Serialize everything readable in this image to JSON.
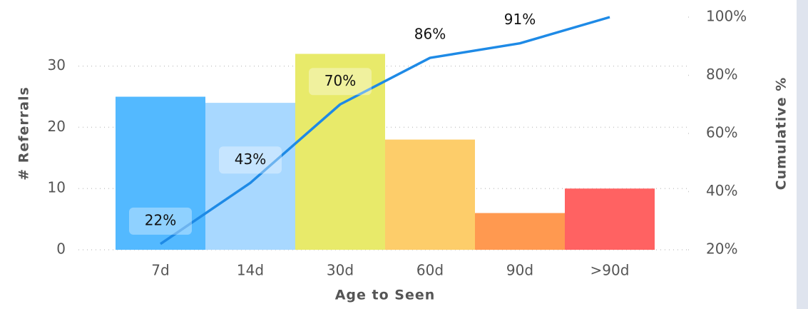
{
  "chart_data": {
    "type": "bar",
    "categories": [
      "7d",
      "14d",
      "30d",
      "60d",
      "90d",
      ">90d"
    ],
    "series": [
      {
        "values": [
          25,
          24,
          32,
          18,
          6,
          10
        ],
        "colors": [
          "#53b9ff",
          "#a8d8ff",
          "#e8ea6a",
          "#fdcd6a",
          "#ff9950",
          "#ff6262"
        ]
      },
      {
        "type": "line",
        "axis": "y2",
        "color": "#1e8ae6",
        "values": [
          22,
          43,
          70,
          86,
          91,
          100
        ],
        "value_labels": [
          "22%",
          "43%",
          "70%",
          "86%",
          "91%",
          "100%"
        ]
      }
    ],
    "xlabel": "Age to Seen",
    "ylabel": "# Referrals",
    "y2label": "Cumulative %",
    "ylim": [
      0,
      38
    ],
    "yticks": [
      0,
      10,
      20,
      30
    ],
    "y2lim": [
      20,
      100
    ],
    "y2ticks": [
      {
        "value": 20,
        "label": "20%"
      },
      {
        "value": 40,
        "label": "40%"
      },
      {
        "value": 60,
        "label": "60%"
      },
      {
        "value": 80,
        "label": "80%"
      },
      {
        "value": 100,
        "label": "100%"
      }
    ],
    "grid": true
  }
}
